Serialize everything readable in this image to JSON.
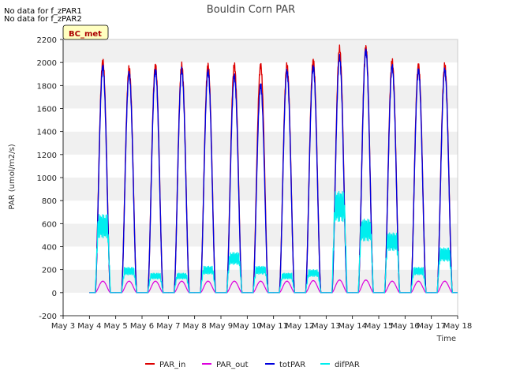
{
  "notices": [
    "No data for f_zPAR1",
    "No data for f_zPAR2"
  ],
  "colors": {
    "PAR_in": "#dd0000",
    "PAR_out": "#dd00dd",
    "totPAR": "#0000dd",
    "difPAR": "#00eeee",
    "band": "#f0f0f0",
    "badge_bg": "#ffffc0",
    "badge_text": "#aa0000"
  },
  "chart_data": {
    "type": "line",
    "title": "Bouldin Corn PAR",
    "xlabel": "Time",
    "ylabel": "PAR (umol/m2/s)",
    "badge": "BC_met",
    "xlim": [
      3,
      18
    ],
    "ylim": [
      -200,
      2200
    ],
    "x_ticks": [
      3,
      4,
      5,
      6,
      7,
      8,
      9,
      10,
      11,
      12,
      13,
      14,
      15,
      16,
      17,
      18
    ],
    "x_tick_labels": [
      "May 3",
      "May 4",
      "May 5",
      "May 6",
      "May 7",
      "May 8",
      "May 9",
      "May 10",
      "May 11",
      "May 12",
      "May 13",
      "May 14",
      "May 15",
      "May 16",
      "May 17",
      "May 18"
    ],
    "y_ticks": [
      -200,
      0,
      200,
      400,
      600,
      800,
      1000,
      1200,
      1400,
      1600,
      1800,
      2000,
      2200
    ],
    "y_tick_labels": [
      "-200",
      "0",
      "200",
      "400",
      "600",
      "800",
      "1000",
      "1200",
      "1400",
      "1600",
      "1800",
      "2000",
      "2200"
    ],
    "legend_position": "bottom-center",
    "days": [
      "May 4",
      "May 5",
      "May 6",
      "May 7",
      "May 8",
      "May 9",
      "May 10",
      "May 11",
      "May 12",
      "May 13",
      "May 14",
      "May 15",
      "May 16",
      "May 17"
    ],
    "day_start": [
      4,
      5,
      6,
      7,
      8,
      9,
      10,
      11,
      12,
      13,
      14,
      15,
      16,
      17
    ],
    "series": [
      {
        "name": "PAR_in",
        "daily_peak": [
          2010,
          1950,
          1975,
          1975,
          1975,
          1975,
          1975,
          1975,
          2015,
          2120,
          2130,
          2010,
          1975,
          1975
        ]
      },
      {
        "name": "PAR_out",
        "daily_peak": [
          100,
          100,
          100,
          100,
          100,
          100,
          100,
          100,
          105,
          110,
          110,
          100,
          100,
          100
        ]
      },
      {
        "name": "totPAR",
        "daily_peak": [
          1960,
          1900,
          1930,
          1930,
          1920,
          1880,
          1800,
          1920,
          1960,
          2040,
          2100,
          1960,
          1930,
          1930
        ]
      },
      {
        "name": "difPAR",
        "daily_peak": [
          680,
          220,
          170,
          170,
          230,
          350,
          230,
          170,
          200,
          880,
          640,
          520,
          220,
          390
        ]
      }
    ]
  }
}
